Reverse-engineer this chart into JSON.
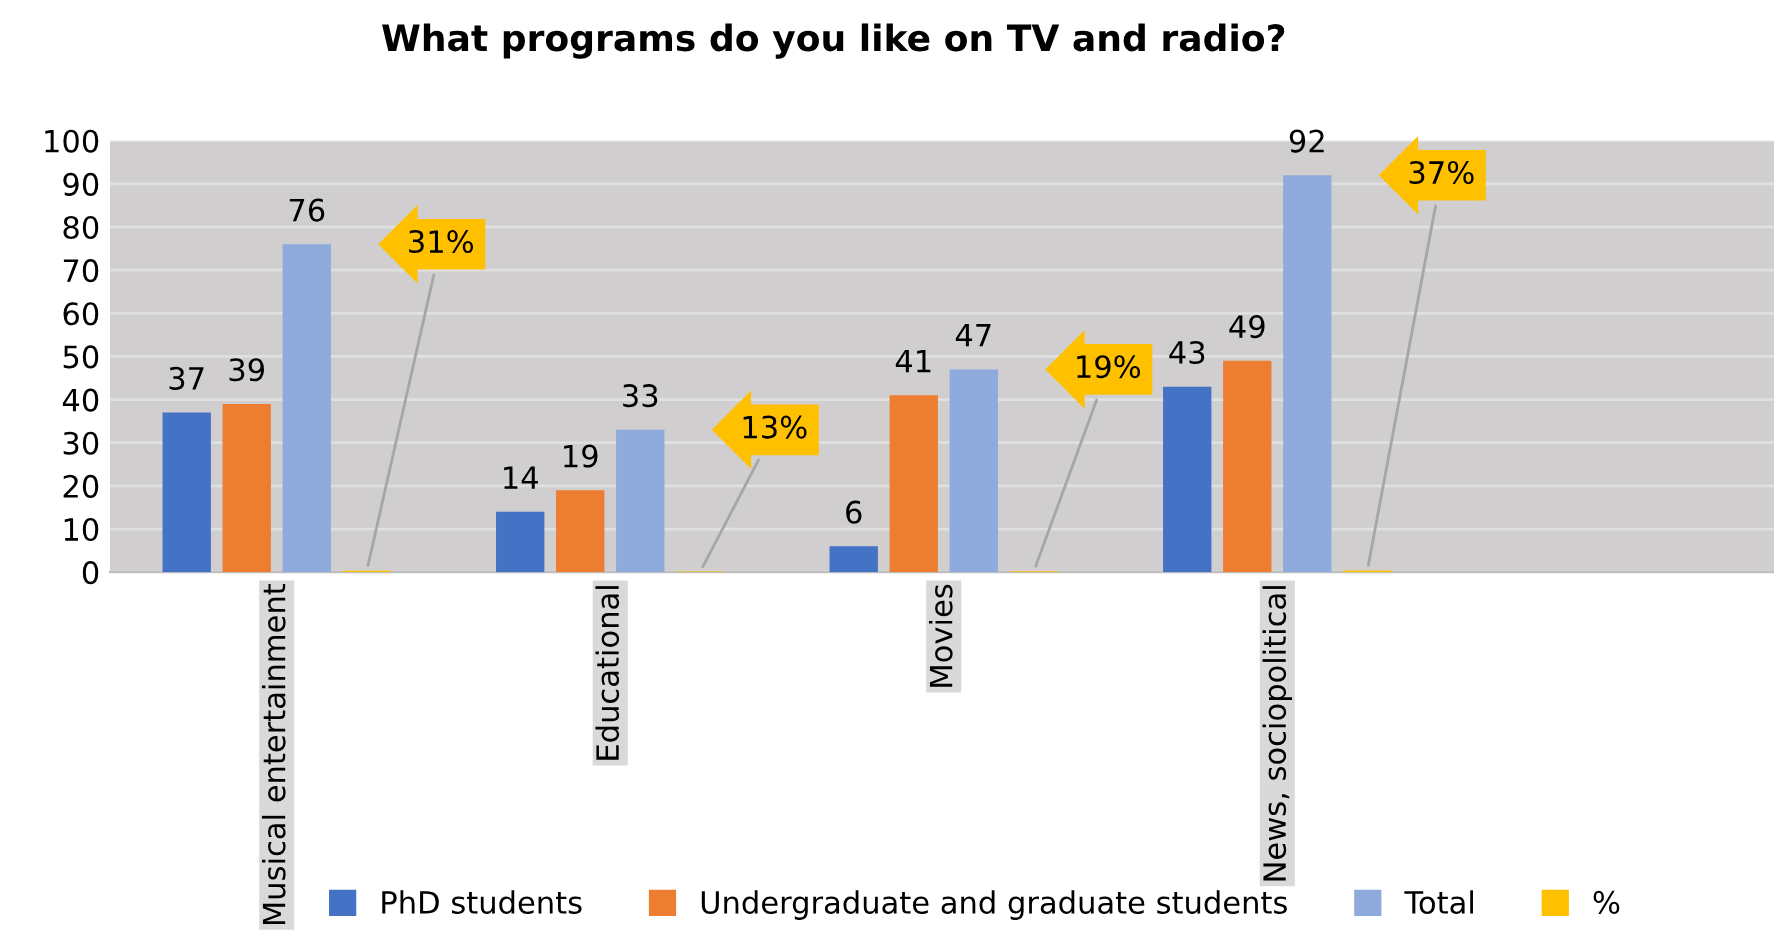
{
  "chart_data": {
    "type": "bar",
    "title": "What programs do you like on TV and radio?",
    "categories": [
      "Musical entertainment",
      "Educational",
      "Movies",
      "News, sociopolitical",
      null
    ],
    "series": [
      {
        "name": "PhD students",
        "color": "#4472c4",
        "values": [
          37,
          14,
          6,
          43,
          null
        ],
        "value_labels": [
          "37",
          "14",
          "6",
          "43",
          null
        ]
      },
      {
        "name": "Undergraduate and graduate students",
        "color": "#ed7d31",
        "values": [
          39,
          19,
          41,
          49,
          null
        ],
        "value_labels": [
          "39",
          "19",
          "41",
          "49",
          null
        ]
      },
      {
        "name": "Total",
        "color": "#8faadc",
        "values": [
          76,
          33,
          47,
          92,
          null
        ],
        "value_labels": [
          "76",
          "33",
          "47",
          "92",
          null
        ]
      },
      {
        "name": "%",
        "color": "#ffc000",
        "values": [
          0.31,
          0.13,
          0.19,
          0.37,
          null
        ],
        "value_labels": [
          "31%",
          "13%",
          "19%",
          "37%",
          null
        ]
      }
    ],
    "ylim": [
      0,
      100
    ],
    "yticks": [
      0,
      10,
      20,
      30,
      40,
      50,
      60,
      70,
      80,
      90,
      100
    ],
    "grid": "y",
    "legend": "bottom"
  }
}
